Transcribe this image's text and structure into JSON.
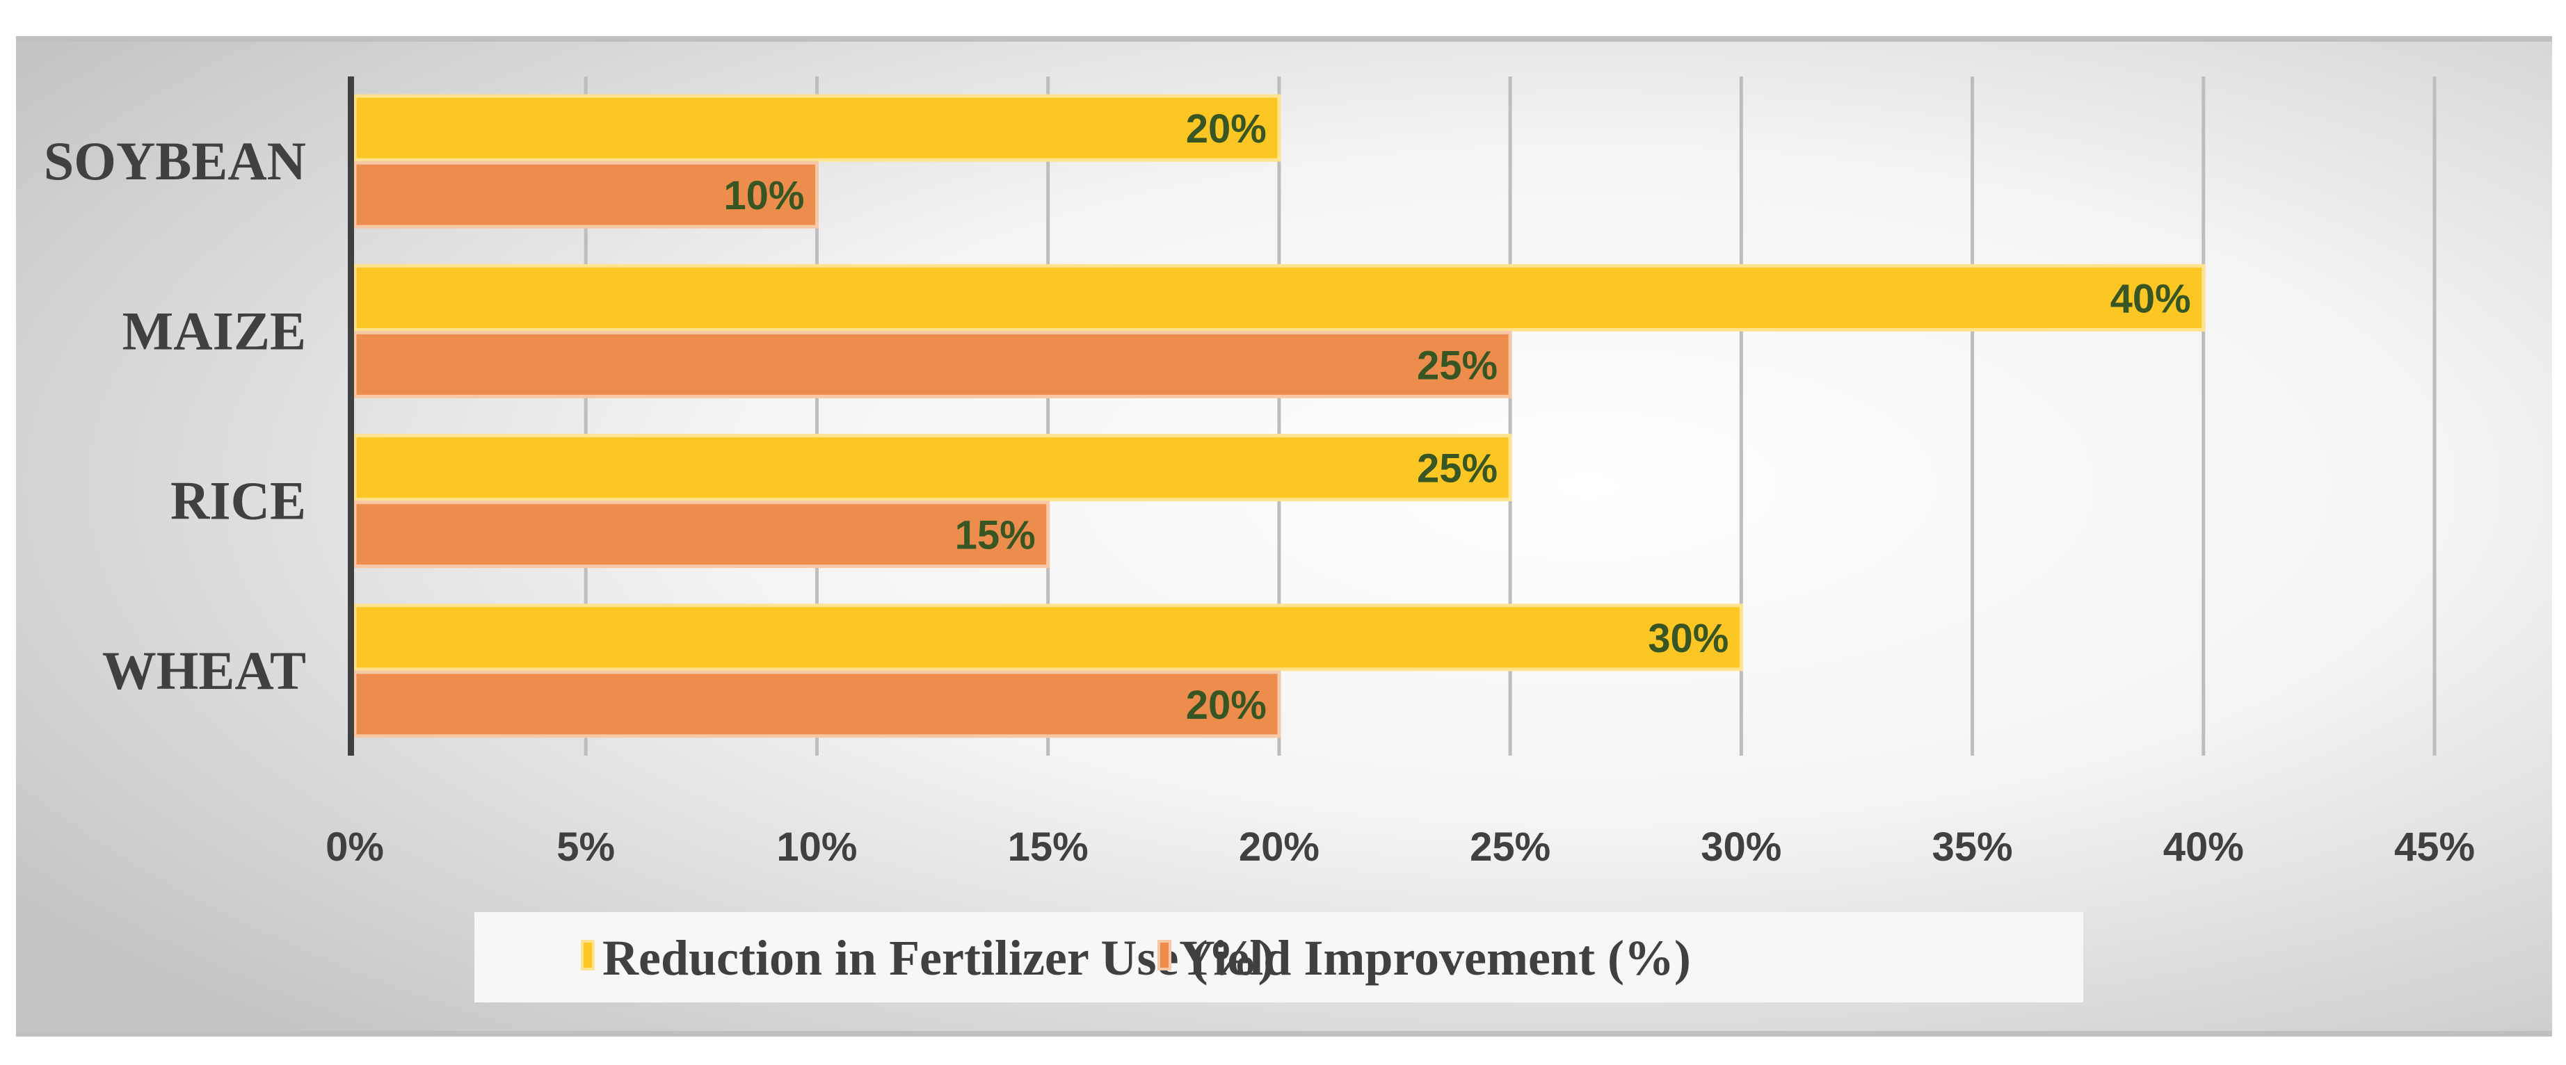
{
  "chart_data": {
    "type": "bar",
    "orientation": "horizontal",
    "title": "",
    "xlabel": "",
    "ylabel": "",
    "categories": [
      "WHEAT",
      "RICE",
      "MAIZE",
      "SOYBEAN"
    ],
    "series": [
      {
        "name": "Reduction in Fertilizer Use (%)",
        "color": "#FCC624",
        "values": [
          30,
          25,
          40,
          20
        ],
        "labels": [
          "30%",
          "25%",
          "40%",
          "20%"
        ]
      },
      {
        "name": "Yield Improvement (%)",
        "color": "#EC8D4D",
        "values": [
          20,
          15,
          25,
          10
        ],
        "labels": [
          "20%",
          "15%",
          "25%",
          "10%"
        ]
      }
    ],
    "xlim": [
      0,
      45
    ],
    "xticks": [
      0,
      5,
      10,
      15,
      20,
      25,
      30,
      35,
      40,
      45
    ],
    "xtick_labels": [
      "0%",
      "5%",
      "10%",
      "15%",
      "20%",
      "25%",
      "30%",
      "35%",
      "40%",
      "45%"
    ],
    "grid": true,
    "legend_position": "bottom",
    "data_label_color": "#375623"
  }
}
